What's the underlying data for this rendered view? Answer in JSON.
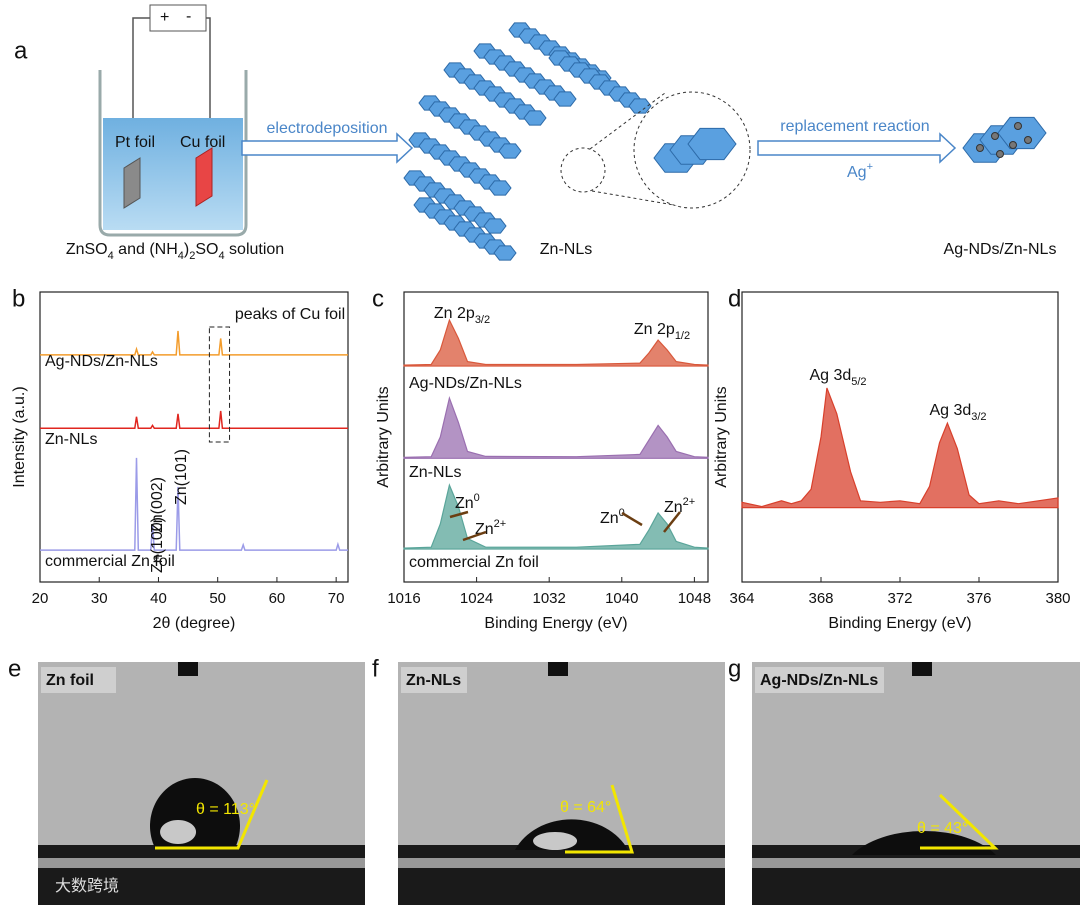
{
  "panel_labels": [
    "a",
    "b",
    "c",
    "d",
    "e",
    "f",
    "g"
  ],
  "schematic": {
    "battery_plus": "+",
    "battery_minus": "-",
    "pt_foil": "Pt foil",
    "cu_foil": "Cu foil",
    "solution": [
      {
        "text": "ZnSO"
      },
      {
        "sub": "4"
      },
      {
        "text": " and (NH"
      },
      {
        "sub": "4"
      },
      {
        "text": ")"
      },
      {
        "sub": "2"
      },
      {
        "text": "SO"
      },
      {
        "sub": "4"
      },
      {
        "text": " solution"
      }
    ],
    "step1": "electrodeposition",
    "product1": "Zn-NLs",
    "step2": "replacement reaction",
    "reagent": [
      {
        "text": "Ag"
      },
      {
        "sup": "+"
      }
    ],
    "product2": "Ag-NDs/Zn-NLs"
  },
  "chart_data": [
    {
      "type": "line",
      "x_label": "2θ (degree)",
      "y_label": "Intensity (a.u.)",
      "x": [
        20,
        36,
        36.3,
        36.6,
        38.7,
        39,
        39.3,
        43,
        43.3,
        43.6,
        50.2,
        50.5,
        50.8,
        54,
        54.3,
        54.6,
        70,
        70.3,
        70.6,
        72
      ],
      "xlim": [
        20,
        72
      ],
      "xticks": [
        20,
        30,
        40,
        50,
        60,
        70
      ],
      "ylim": [
        0,
        100
      ],
      "series": [
        {
          "name": "Ag-NDs/Zn-NLs",
          "color": "#f39c2b",
          "values": [
            78.3,
            78.3,
            80.3,
            78.3,
            78.3,
            79.3,
            78.3,
            78.3,
            86.6,
            78.3,
            78.3,
            84,
            78.3,
            78.3,
            78.3,
            78.3,
            78.3,
            78.3,
            78.3,
            78.3
          ]
        },
        {
          "name": "Zn-NLs",
          "color": "#e0261f",
          "values": [
            53,
            53,
            57,
            53,
            53,
            54,
            53,
            53,
            58,
            53,
            53,
            59,
            53,
            53,
            53,
            53,
            53,
            53,
            53,
            53
          ]
        },
        {
          "name": "commercial Zn foil",
          "color": "#9b9be8",
          "values": [
            11,
            11,
            42.8,
            11,
            11,
            19.7,
            11,
            11,
            32.8,
            11,
            11,
            11,
            11,
            11,
            12.8,
            11,
            11,
            13,
            11,
            11
          ]
        }
      ],
      "annotations": [
        [
          {
            "text": "peaks of Cu foil"
          }
        ],
        [
          {
            "text": "Zn(002)"
          }
        ],
        [
          {
            "text": "Zn(100)"
          }
        ],
        [
          {
            "text": "Zn(101)"
          }
        ]
      ]
    },
    {
      "type": "area",
      "x_label": "Binding Energy (eV)",
      "y_label": "Arbitrary Units",
      "x": [
        1016,
        1019,
        1020,
        1021,
        1022,
        1023,
        1025,
        1035,
        1042,
        1043,
        1044,
        1045,
        1046,
        1048,
        1049.5
      ],
      "xlim": [
        1016,
        1049.5
      ],
      "xticks": [
        1016,
        1024,
        1032,
        1040,
        1048
      ],
      "ylim": [
        0,
        100
      ],
      "series": [
        {
          "name": "Ag-NDs/Zn-NLs",
          "color": "#d9583b",
          "values": [
            74.8,
            75,
            80,
            90.3,
            84,
            76,
            75,
            75,
            75.5,
            79,
            83.4,
            80,
            76,
            75,
            74.8
          ]
        },
        {
          "name": "Zn-NLs",
          "color": "#9a6fb0",
          "values": [
            43,
            43.2,
            50,
            63.4,
            55,
            45,
            43.3,
            43.2,
            44,
            49,
            54,
            50,
            45,
            43.2,
            43
          ]
        },
        {
          "name": "commercial Zn foil",
          "color": "#5aa59a",
          "values": [
            11.7,
            12,
            20,
            33.4,
            26,
            15,
            12,
            12,
            13,
            18,
            23.8,
            20,
            14,
            12,
            11.7
          ]
        }
      ],
      "annotations": [
        [
          {
            "text": "Zn 2p"
          },
          {
            "sub": "3/2"
          }
        ],
        [
          {
            "text": "Zn 2p"
          },
          {
            "sub": "1/2"
          }
        ],
        [
          {
            "text": "Zn"
          },
          {
            "sup": "0"
          }
        ],
        [
          {
            "text": "Zn"
          },
          {
            "sup": "2+"
          }
        ],
        [
          {
            "text": "Zn"
          },
          {
            "sup": "0"
          }
        ],
        [
          {
            "text": "Zn"
          },
          {
            "sup": "2+"
          }
        ]
      ]
    },
    {
      "type": "area",
      "x_label": "Binding Energy (eV)",
      "y_label": "Arbitrary Units",
      "x": [
        364,
        365,
        366,
        366.5,
        367,
        367.5,
        368,
        368.3,
        368.8,
        369.5,
        370,
        371,
        372,
        373,
        373.5,
        374,
        374.4,
        374.9,
        375.5,
        376,
        377,
        378,
        379,
        380
      ],
      "xlim": [
        364,
        380
      ],
      "xticks": [
        364,
        368,
        372,
        376,
        380
      ],
      "ylim": [
        0,
        100
      ],
      "series": [
        {
          "name": "Ag 3d",
          "color": "#d8402c",
          "values": [
            27.5,
            26,
            28,
            27,
            28,
            32,
            50,
            66.9,
            58,
            38,
            28,
            27.5,
            28,
            27,
            33,
            48,
            54.8,
            46,
            30,
            27,
            28,
            27,
            28,
            29
          ]
        }
      ],
      "annotations": [
        [
          {
            "text": "Ag 3d"
          },
          {
            "sub": "5/2"
          }
        ],
        [
          {
            "text": "Ag 3d"
          },
          {
            "sub": "3/2"
          }
        ]
      ]
    }
  ],
  "photos": [
    {
      "label": "Zn foil",
      "angle": "θ = 113°"
    },
    {
      "label": "Zn-NLs",
      "angle": "θ = 64°"
    },
    {
      "label": "Ag-NDs/Zn-NLs",
      "angle": "θ = 43°"
    }
  ],
  "watermark": "大数跨境"
}
